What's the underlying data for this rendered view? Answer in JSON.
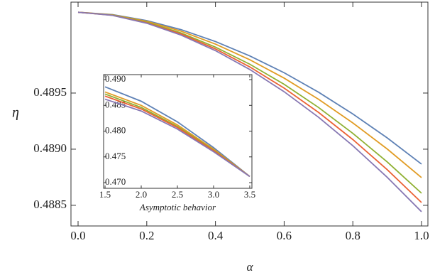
{
  "chart_data": [
    {
      "type": "line",
      "xlabel": "α",
      "ylabel": "η",
      "x": [
        0,
        0.1,
        0.2,
        0.3,
        0.4,
        0.5,
        0.6,
        0.7,
        0.8,
        0.9,
        1.0
      ],
      "series": [
        {
          "color": "#5E81B5",
          "values": [
            0.49022,
            0.490199,
            0.490145,
            0.490065,
            0.489959,
            0.489831,
            0.489681,
            0.489508,
            0.489314,
            0.489101,
            0.488867
          ]
        },
        {
          "color": "#E19C24",
          "values": [
            0.49022,
            0.490197,
            0.490139,
            0.490051,
            0.489936,
            0.489797,
            0.489633,
            0.489445,
            0.489234,
            0.489002,
            0.488747
          ]
        },
        {
          "color": "#8FB032",
          "values": [
            0.49022,
            0.490195,
            0.490131,
            0.490035,
            0.489909,
            0.489757,
            0.489578,
            0.489372,
            0.489141,
            0.488887,
            0.488608
          ]
        },
        {
          "color": "#EB6235",
          "values": [
            0.49022,
            0.490193,
            0.490126,
            0.490026,
            0.489893,
            0.489733,
            0.489544,
            0.489328,
            0.489086,
            0.488818,
            0.488525
          ]
        },
        {
          "color": "#8778B3",
          "values": [
            0.49022,
            0.490192,
            0.490122,
            0.490016,
            0.489878,
            0.48971,
            0.489512,
            0.489285,
            0.489031,
            0.48875,
            0.488443
          ]
        }
      ],
      "xlim": [
        -0.0207,
        1.0186
      ],
      "ylim": [
        0.488316,
        0.49031
      ],
      "xticks": [
        {
          "value": 0,
          "label": "0.0"
        },
        0.2,
        0.4,
        0.6,
        0.8,
        {
          "value": 1.0,
          "label": "1.0"
        }
      ],
      "yticks": [
        0.4885,
        {
          "value": 0.489,
          "label": "0.4890"
        },
        0.4895
      ]
    },
    {
      "type": "line",
      "annotation": "Asymptotic behavior",
      "x": [
        1.5,
        2.0,
        2.5,
        3.0,
        3.5
      ],
      "series": [
        {
          "color": "#5E81B5",
          "values": [
            0.4886,
            0.4858,
            0.4818,
            0.4768,
            0.4712
          ]
        },
        {
          "color": "#E19C24",
          "values": [
            0.4876,
            0.485,
            0.4812,
            0.4765,
            0.4712
          ]
        },
        {
          "color": "#8FB032",
          "values": [
            0.4872,
            0.4846,
            0.4809,
            0.4763,
            0.4712
          ]
        },
        {
          "color": "#EB6235",
          "values": [
            0.4868,
            0.4843,
            0.4807,
            0.4762,
            0.4712
          ]
        },
        {
          "color": "#8778B3",
          "values": [
            0.4862,
            0.4839,
            0.4804,
            0.476,
            0.4712
          ]
        }
      ],
      "xlim": [
        1.48,
        3.53
      ],
      "ylim": [
        0.4689,
        0.49097
      ],
      "xticks": [
        1.5,
        {
          "value": 2.0,
          "label": "2.0"
        },
        2.5,
        {
          "value": 3.0,
          "label": "3.0"
        },
        3.5
      ],
      "yticks": [
        {
          "value": 0.47,
          "label": "0.470"
        },
        0.475,
        {
          "value": 0.48,
          "label": "0.480"
        },
        0.485,
        {
          "value": 0.49,
          "label": "0.490"
        }
      ]
    }
  ]
}
